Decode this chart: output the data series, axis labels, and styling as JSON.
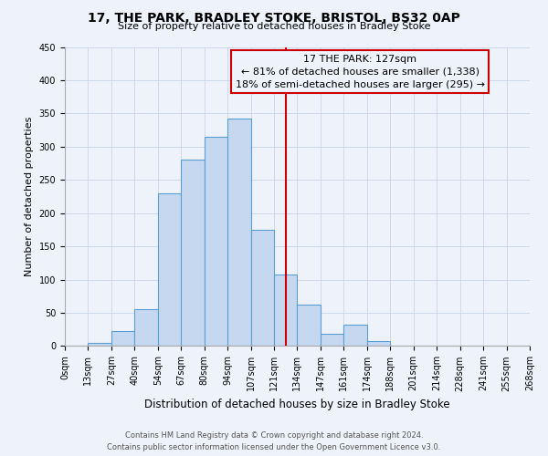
{
  "title": "17, THE PARK, BRADLEY STOKE, BRISTOL, BS32 0AP",
  "subtitle": "Size of property relative to detached houses in Bradley Stoke",
  "xlabel": "Distribution of detached houses by size in Bradley Stoke",
  "ylabel": "Number of detached properties",
  "bin_labels": [
    "0sqm",
    "13sqm",
    "27sqm",
    "40sqm",
    "54sqm",
    "67sqm",
    "80sqm",
    "94sqm",
    "107sqm",
    "121sqm",
    "134sqm",
    "147sqm",
    "161sqm",
    "174sqm",
    "188sqm",
    "201sqm",
    "214sqm",
    "228sqm",
    "241sqm",
    "255sqm",
    "268sqm"
  ],
  "bar_heights": [
    0,
    5,
    22,
    55,
    230,
    280,
    315,
    342,
    175,
    108,
    63,
    18,
    32,
    8,
    0,
    0,
    0,
    0,
    0,
    0
  ],
  "bar_color": "#c5d8f0",
  "bar_edge_color": "#5a9fd4",
  "grid_color": "#c8d4e8",
  "background_color": "#eef2fb",
  "vline_x": 9.5,
  "vline_color": "#cc0000",
  "annotation_title": "17 THE PARK: 127sqm",
  "annotation_line1": "← 81% of detached houses are smaller (1,338)",
  "annotation_line2": "18% of semi-detached houses are larger (295) →",
  "annotation_box_color": "#cc0000",
  "ylim": [
    0,
    450
  ],
  "yticks": [
    0,
    50,
    100,
    150,
    200,
    250,
    300,
    350,
    400,
    450
  ],
  "footer_line1": "Contains HM Land Registry data © Crown copyright and database right 2024.",
  "footer_line2": "Contains public sector information licensed under the Open Government Licence v3.0.",
  "title_fontsize": 10,
  "subtitle_fontsize": 8,
  "xlabel_fontsize": 8.5,
  "ylabel_fontsize": 8,
  "tick_fontsize": 7,
  "footer_fontsize": 6,
  "annot_fontsize": 8
}
